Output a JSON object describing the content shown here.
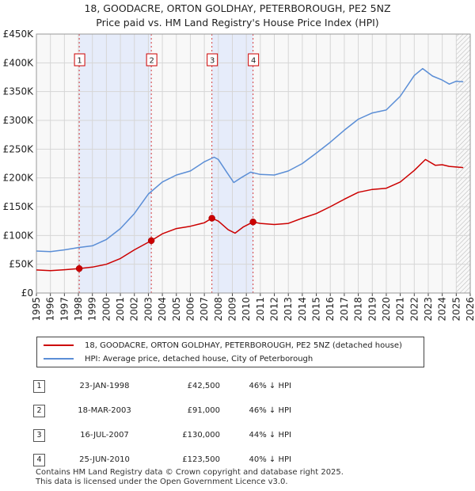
{
  "title_line1": "18, GOODACRE, ORTON GOLDHAY, PETERBOROUGH, PE2 5NZ",
  "title_line2": "Price paid vs. HM Land Registry's House Price Index (HPI)",
  "chart_data": {
    "type": "line",
    "xlim": [
      1995,
      2026
    ],
    "ylim": [
      0,
      450000
    ],
    "xticks": [
      1995,
      1996,
      1997,
      1998,
      1999,
      2000,
      2001,
      2002,
      2003,
      2004,
      2005,
      2006,
      2007,
      2008,
      2009,
      2010,
      2011,
      2012,
      2013,
      2014,
      2015,
      2016,
      2017,
      2018,
      2019,
      2020,
      2021,
      2022,
      2023,
      2024,
      2025,
      2026
    ],
    "yticks": [
      {
        "value": 0,
        "label": "£0"
      },
      {
        "value": 50000,
        "label": "£50K"
      },
      {
        "value": 100000,
        "label": "£100K"
      },
      {
        "value": 150000,
        "label": "£150K"
      },
      {
        "value": 200000,
        "label": "£200K"
      },
      {
        "value": 250000,
        "label": "£250K"
      },
      {
        "value": 300000,
        "label": "£300K"
      },
      {
        "value": 350000,
        "label": "£350K"
      },
      {
        "value": 400000,
        "label": "£400K"
      },
      {
        "value": 450000,
        "label": "£450K"
      }
    ],
    "shaded_periods": [
      [
        1998.06,
        2003.21
      ],
      [
        2007.54,
        2010.48
      ]
    ],
    "future_hatch_from": 2025.0,
    "series": [
      {
        "name": "18, GOODACRE, ORTON GOLDHAY, PETERBOROUGH, PE2 5NZ (detached house)",
        "color": "#cc0000",
        "points": [
          [
            1995,
            40000
          ],
          [
            1996,
            39000
          ],
          [
            1997,
            40500
          ],
          [
            1998.06,
            42500
          ],
          [
            1999,
            45000
          ],
          [
            2000,
            50000
          ],
          [
            2001,
            60000
          ],
          [
            2002,
            75000
          ],
          [
            2003.21,
            91000
          ],
          [
            2004,
            103000
          ],
          [
            2005,
            112000
          ],
          [
            2006,
            116000
          ],
          [
            2007.0,
            122000
          ],
          [
            2007.54,
            130000
          ],
          [
            2008,
            125000
          ],
          [
            2008.7,
            110000
          ],
          [
            2009.2,
            104000
          ],
          [
            2009.8,
            115000
          ],
          [
            2010.48,
            123500
          ],
          [
            2011,
            121000
          ],
          [
            2012,
            119000
          ],
          [
            2013,
            121000
          ],
          [
            2014,
            130000
          ],
          [
            2015,
            138000
          ],
          [
            2016,
            150000
          ],
          [
            2017,
            163000
          ],
          [
            2018,
            175000
          ],
          [
            2019,
            180000
          ],
          [
            2020,
            182000
          ],
          [
            2021,
            193000
          ],
          [
            2022,
            213000
          ],
          [
            2022.8,
            232000
          ],
          [
            2023.5,
            222000
          ],
          [
            2024,
            223000
          ],
          [
            2024.5,
            220000
          ],
          [
            2025.0,
            219000
          ],
          [
            2025.5,
            218000
          ]
        ]
      },
      {
        "name": "HPI: Average price, detached house, City of Peterborough",
        "color": "#5b8ed6",
        "points": [
          [
            1995,
            73000
          ],
          [
            1996,
            72000
          ],
          [
            1997,
            75000
          ],
          [
            1998,
            79000
          ],
          [
            1999,
            82000
          ],
          [
            2000,
            93000
          ],
          [
            2001,
            112000
          ],
          [
            2002,
            138000
          ],
          [
            2003,
            172000
          ],
          [
            2004,
            193000
          ],
          [
            2005,
            205000
          ],
          [
            2006,
            212000
          ],
          [
            2007,
            228000
          ],
          [
            2007.7,
            236000
          ],
          [
            2008,
            232000
          ],
          [
            2008.6,
            210000
          ],
          [
            2009.1,
            192000
          ],
          [
            2009.6,
            200000
          ],
          [
            2010.3,
            210000
          ],
          [
            2011,
            206000
          ],
          [
            2012,
            205000
          ],
          [
            2013,
            212000
          ],
          [
            2014,
            225000
          ],
          [
            2015,
            243000
          ],
          [
            2016,
            262000
          ],
          [
            2017,
            283000
          ],
          [
            2018,
            302000
          ],
          [
            2019,
            313000
          ],
          [
            2020,
            318000
          ],
          [
            2021,
            342000
          ],
          [
            2022,
            378000
          ],
          [
            2022.6,
            390000
          ],
          [
            2023.3,
            377000
          ],
          [
            2024,
            370000
          ],
          [
            2024.5,
            363000
          ],
          [
            2025.0,
            368000
          ],
          [
            2025.5,
            367000
          ]
        ]
      }
    ],
    "sales": [
      {
        "num": "1",
        "x": 1998.06,
        "y": 42500
      },
      {
        "num": "2",
        "x": 2003.21,
        "y": 91000
      },
      {
        "num": "3",
        "x": 2007.54,
        "y": 130000
      },
      {
        "num": "4",
        "x": 2010.48,
        "y": 123500
      }
    ]
  },
  "legend": [
    {
      "label": "18, GOODACRE, ORTON GOLDHAY, PETERBOROUGH, PE2 5NZ (detached house)",
      "color": "#cc0000"
    },
    {
      "label": "HPI: Average price, detached house, City of Peterborough",
      "color": "#5b8ed6"
    }
  ],
  "transactions": [
    {
      "num": "1",
      "date": "23-JAN-1998",
      "price": "£42,500",
      "hpi": "46% ↓ HPI"
    },
    {
      "num": "2",
      "date": "18-MAR-2003",
      "price": "£91,000",
      "hpi": "46% ↓ HPI"
    },
    {
      "num": "3",
      "date": "16-JUL-2007",
      "price": "£130,000",
      "hpi": "44% ↓ HPI"
    },
    {
      "num": "4",
      "date": "25-JUN-2010",
      "price": "£123,500",
      "hpi": "40% ↓ HPI"
    }
  ],
  "footer_line1": "Contains HM Land Registry data © Crown copyright and database right 2025.",
  "footer_line2": "This data is licensed under the Open Government Licence v3.0."
}
